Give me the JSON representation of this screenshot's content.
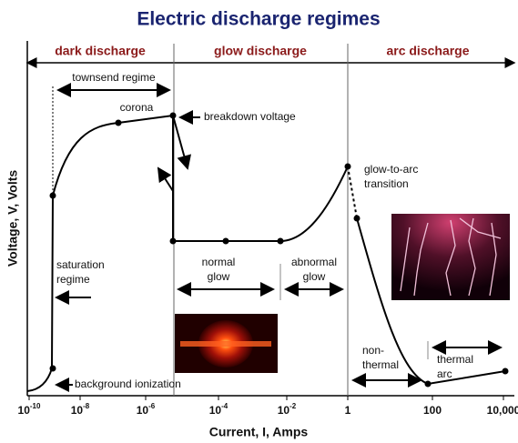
{
  "title": "Electric discharge regimes",
  "regions": [
    "dark discharge",
    "glow discharge",
    "arc discharge"
  ],
  "x_axis": {
    "label": "Current, I, Amps",
    "ticks": [
      {
        "base": "10",
        "exp": "-10"
      },
      {
        "base": "10",
        "exp": "-8"
      },
      {
        "base": "10",
        "exp": "-6"
      },
      {
        "base": "10",
        "exp": "-4"
      },
      {
        "base": "10",
        "exp": "-2"
      },
      {
        "base": "1"
      },
      {
        "base": "100"
      },
      {
        "base": "10,000"
      }
    ]
  },
  "y_axis": {
    "label": "Voltage, V, Volts"
  },
  "annotations": [
    {
      "lines": [
        "townsend regime"
      ]
    },
    {
      "lines": [
        "corona"
      ]
    },
    {
      "lines": [
        "breakdown voltage"
      ]
    },
    {
      "lines": [
        "glow-to-arc",
        "transition"
      ]
    },
    {
      "lines": [
        "saturation",
        "regime"
      ]
    },
    {
      "lines": [
        "background ionization"
      ]
    },
    {
      "lines": [
        "normal",
        "glow"
      ]
    },
    {
      "lines": [
        "abnormal",
        "glow"
      ]
    },
    {
      "lines": [
        "non-",
        "thermal"
      ]
    },
    {
      "lines": [
        "thermal",
        "arc"
      ]
    }
  ]
}
